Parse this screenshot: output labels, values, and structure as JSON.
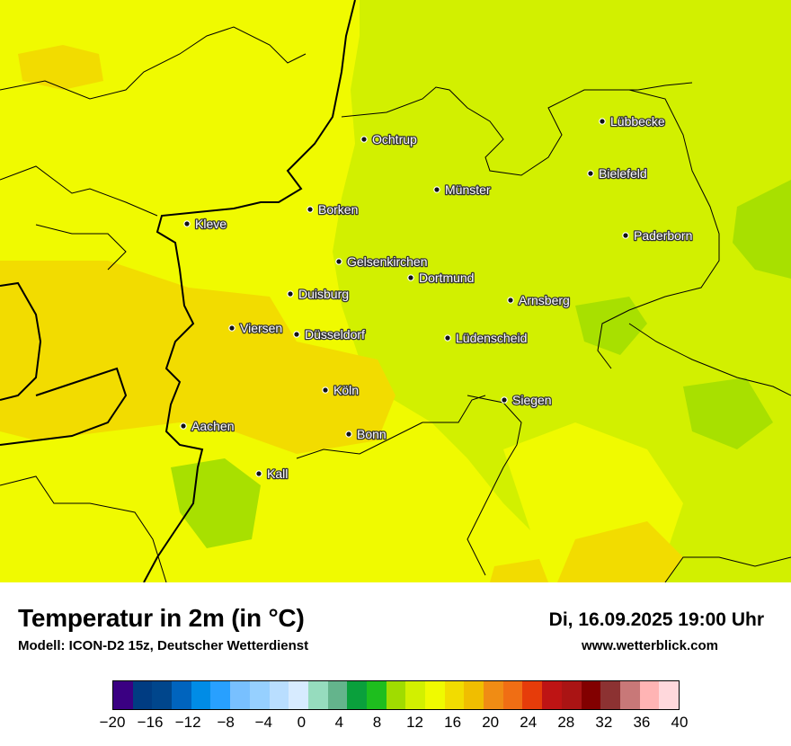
{
  "map": {
    "background_color": "#f0fa00",
    "zones": [
      {
        "name": "zone-16",
        "color": "#f0fa00"
      },
      {
        "name": "zone-14",
        "color": "#d2f000"
      },
      {
        "name": "zone-18",
        "color": "#f2dc00"
      },
      {
        "name": "zone-12",
        "color": "#a8e000"
      }
    ],
    "cities": [
      {
        "name": "Ochtrup"
      },
      {
        "name": "Lübbecke"
      },
      {
        "name": "Bielefeld"
      },
      {
        "name": "Münster"
      },
      {
        "name": "Borken"
      },
      {
        "name": "Kleve"
      },
      {
        "name": "Paderborn"
      },
      {
        "name": "Gelsenkirchen"
      },
      {
        "name": "Dortmund"
      },
      {
        "name": "Duisburg"
      },
      {
        "name": "Arnsberg"
      },
      {
        "name": "Viersen"
      },
      {
        "name": "Düsseldorf"
      },
      {
        "name": "Lüdenscheid"
      },
      {
        "name": "Köln"
      },
      {
        "name": "Siegen"
      },
      {
        "name": "Aachen"
      },
      {
        "name": "Bonn"
      },
      {
        "name": "Kall"
      }
    ]
  },
  "footer": {
    "title": "Temperatur in 2m (in °C)",
    "model": "Modell: ICON-D2 15z, Deutscher Wetterdienst",
    "datetime": "Di, 16.09.2025 19:00 Uhr",
    "website": "www.wetterblick.com"
  },
  "legend": {
    "colors": [
      "#3a0082",
      "#003c82",
      "#00468c",
      "#0064be",
      "#008ce6",
      "#28a0ff",
      "#78c0ff",
      "#96d0ff",
      "#b9deff",
      "#d7ebff",
      "#96dcbe",
      "#64b48c",
      "#0aa03c",
      "#1ebe1e",
      "#a0dc00",
      "#d2f000",
      "#f0fa00",
      "#f2dc00",
      "#f0be00",
      "#f08c14",
      "#f06e14",
      "#e63c0a",
      "#be1414",
      "#aa1414",
      "#820000",
      "#8c3232",
      "#c87878",
      "#ffb4b4",
      "#ffd8dc"
    ],
    "ticks": [
      "−20",
      "−16",
      "−12",
      "−8",
      "−4",
      "0",
      "4",
      "8",
      "12",
      "16",
      "20",
      "24",
      "28",
      "32",
      "36",
      "40"
    ]
  }
}
